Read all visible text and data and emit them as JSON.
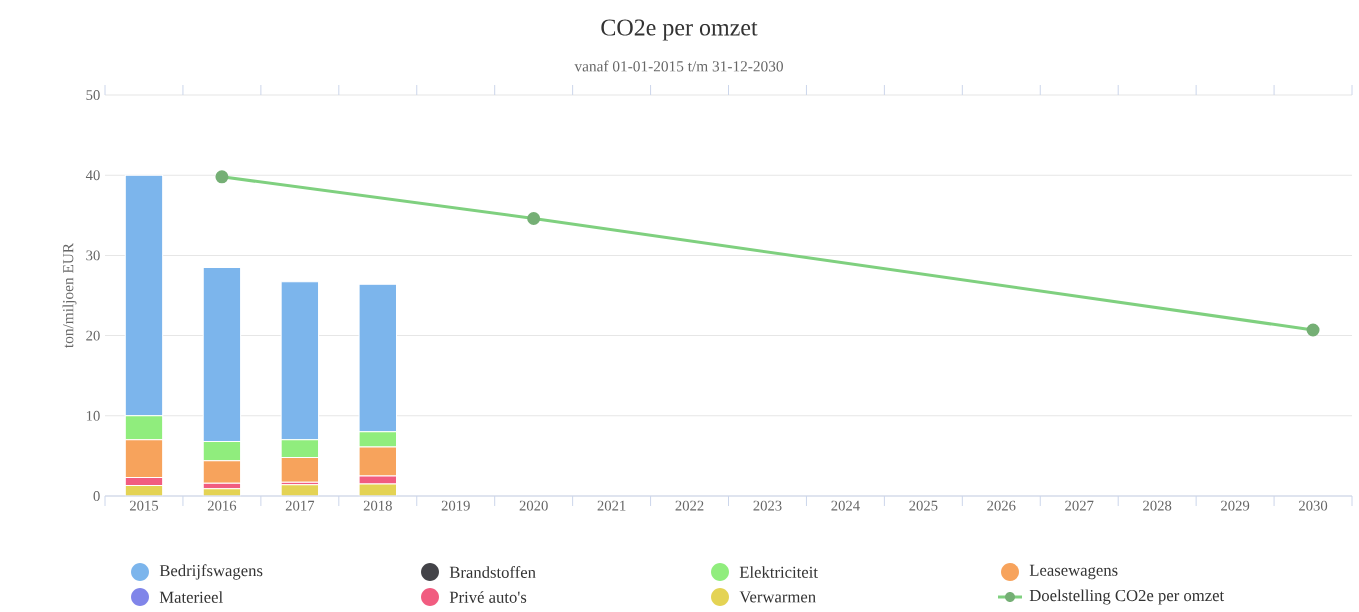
{
  "chart_data": {
    "type": "bar",
    "title": "CO2e per omzet",
    "subtitle": "vanaf 01-01-2015 t/m 31-12-2030",
    "ylabel": "ton/miljoen EUR",
    "categories": [
      "2015",
      "2016",
      "2017",
      "2018",
      "2019",
      "2020",
      "2021",
      "2022",
      "2023",
      "2024",
      "2025",
      "2026",
      "2027",
      "2028",
      "2029",
      "2030"
    ],
    "stacked": true,
    "ylim": [
      0,
      50
    ],
    "yticks": [
      0,
      10,
      20,
      30,
      40,
      50
    ],
    "grid": "y",
    "legend": "bottom",
    "series": [
      {
        "name": "Verwarmen",
        "color": "#e4d354",
        "values": [
          1.3,
          0.9,
          1.4,
          1.5,
          null,
          null,
          null,
          null,
          null,
          null,
          null,
          null,
          null,
          null,
          null,
          null
        ]
      },
      {
        "name": "Privé auto's",
        "color": "#f15c80",
        "values": [
          1.0,
          0.7,
          0.3,
          1.0,
          null,
          null,
          null,
          null,
          null,
          null,
          null,
          null,
          null,
          null,
          null,
          null
        ]
      },
      {
        "name": "Materieel",
        "color": "#8085e9",
        "values": [
          null,
          null,
          null,
          null,
          null,
          null,
          null,
          null,
          null,
          null,
          null,
          null,
          null,
          null,
          null,
          null
        ]
      },
      {
        "name": "Leasewagens",
        "color": "#f7a35c",
        "values": [
          4.7,
          2.8,
          3.1,
          3.6,
          null,
          null,
          null,
          null,
          null,
          null,
          null,
          null,
          null,
          null,
          null,
          null
        ]
      },
      {
        "name": "Elektriciteit",
        "color": "#90ed7d",
        "values": [
          3.0,
          2.4,
          2.2,
          1.9,
          null,
          null,
          null,
          null,
          null,
          null,
          null,
          null,
          null,
          null,
          null,
          null
        ]
      },
      {
        "name": "Brandstoffen",
        "color": "#434348",
        "values": [
          null,
          null,
          null,
          null,
          null,
          null,
          null,
          null,
          null,
          null,
          null,
          null,
          null,
          null,
          null,
          null
        ]
      },
      {
        "name": "Bedrijfswagens",
        "color": "#7cb5ec",
        "values": [
          30.0,
          21.7,
          19.7,
          18.4,
          null,
          null,
          null,
          null,
          null,
          null,
          null,
          null,
          null,
          null,
          null,
          null
        ]
      },
      {
        "name": "Doelstelling CO2e per omzet",
        "type": "line",
        "marker": "circle",
        "color": "#7fd07f",
        "values": [
          null,
          39.8,
          null,
          null,
          null,
          34.6,
          null,
          null,
          null,
          null,
          null,
          null,
          null,
          null,
          null,
          20.7
        ]
      }
    ]
  }
}
